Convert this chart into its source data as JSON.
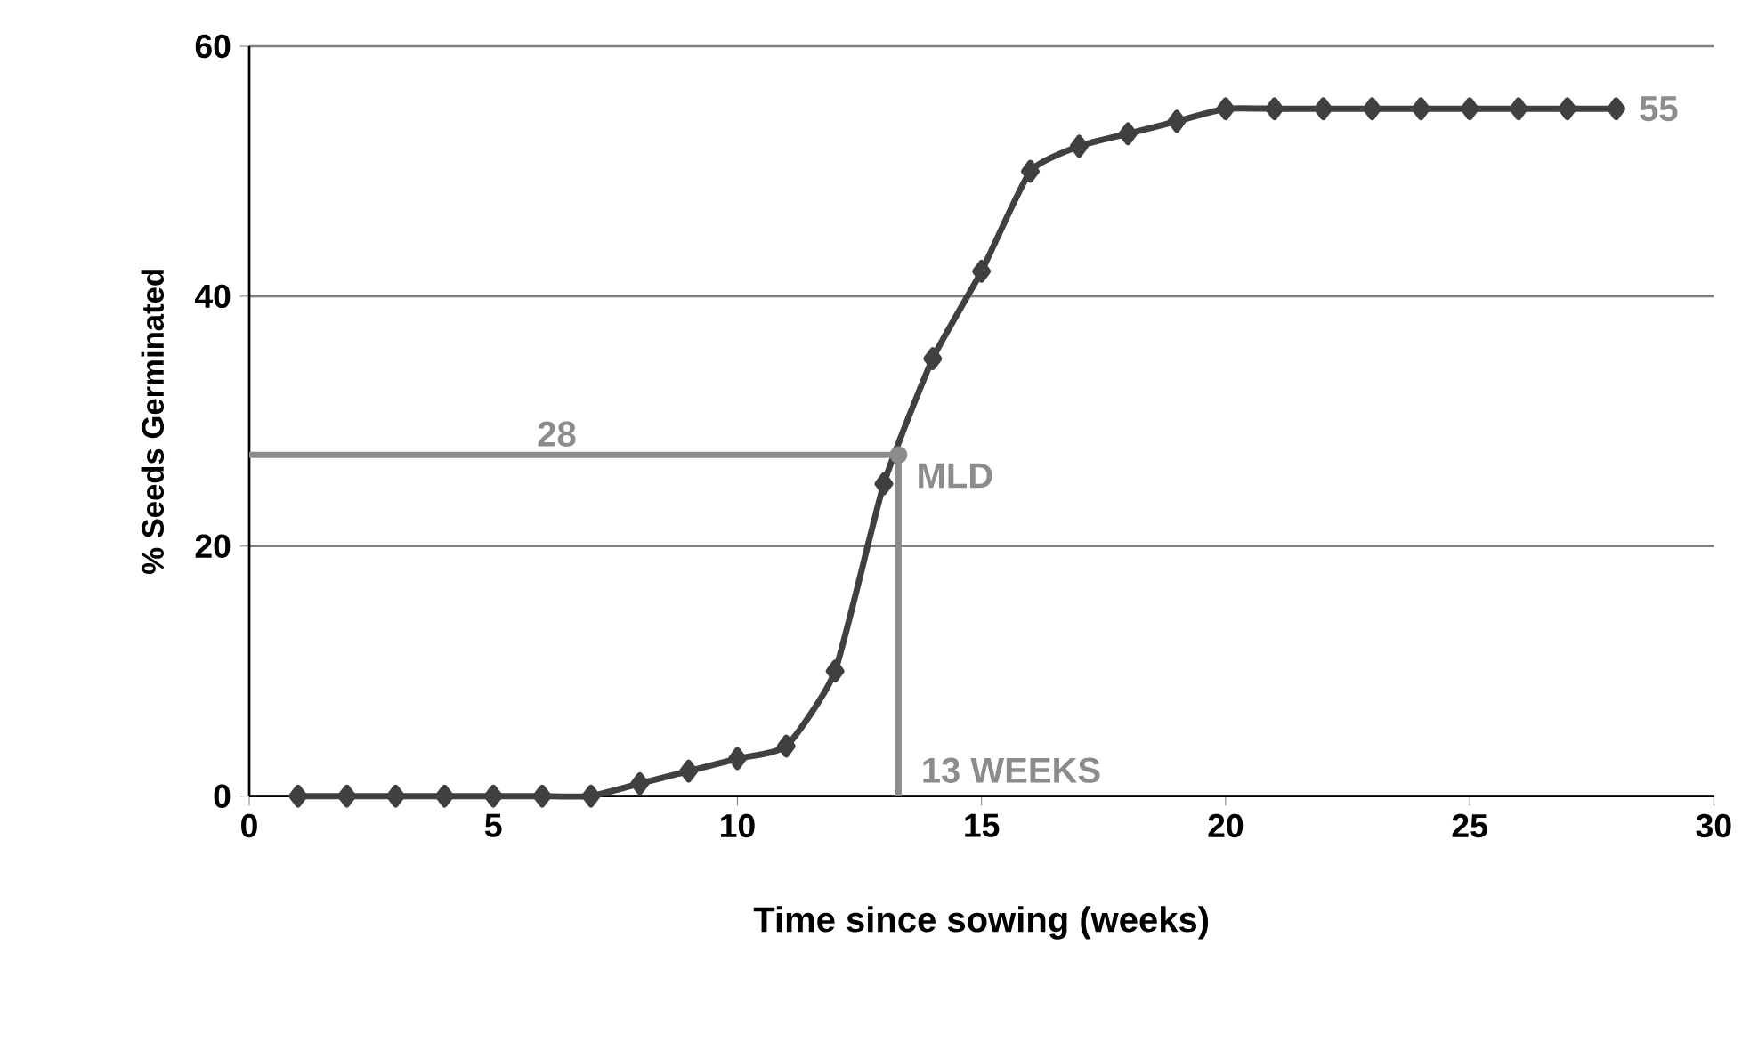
{
  "chart_data": {
    "type": "line",
    "xlabel": "Time since sowing (weeks)",
    "ylabel": "% Seeds Germinated",
    "xlim": [
      0,
      30
    ],
    "ylim": [
      0,
      60
    ],
    "xticks": [
      0,
      5,
      10,
      15,
      20,
      25,
      30
    ],
    "yticks": [
      0,
      20,
      40,
      60
    ],
    "grid": "y",
    "series": [
      {
        "color": "#404040",
        "marker": "diamond",
        "x": [
          1,
          2,
          3,
          4,
          5,
          6,
          7,
          8,
          9,
          10,
          11,
          12,
          13,
          14,
          15,
          16,
          17,
          18,
          19,
          20,
          21,
          22,
          23,
          24,
          25,
          26,
          27,
          28
        ],
        "values": [
          0,
          0,
          0,
          0,
          0,
          0,
          0,
          1,
          2,
          3,
          4,
          10,
          25,
          35,
          42,
          50,
          52,
          53,
          54,
          55,
          55,
          55,
          55,
          55,
          55,
          55,
          55,
          55
        ]
      },
      {
        "color": "#8c8c8c",
        "marker": "none",
        "x": [
          0,
          13.3,
          13.3
        ],
        "values": [
          27.3,
          27.3,
          0
        ]
      },
      {
        "type": "scatter",
        "color": "#8c8c8c",
        "marker": "circle",
        "x": [
          13.3
        ],
        "values": [
          27.3
        ]
      }
    ],
    "annotations": [
      {
        "text": "28",
        "x": 6.3,
        "y": 27.3
      },
      {
        "text": "MLD",
        "x": 13.3,
        "y": 27.3
      },
      {
        "text": "13 WEEKS",
        "x": 13.3,
        "y": 0
      },
      {
        "text": "55",
        "x": 28,
        "y": 55
      }
    ]
  }
}
